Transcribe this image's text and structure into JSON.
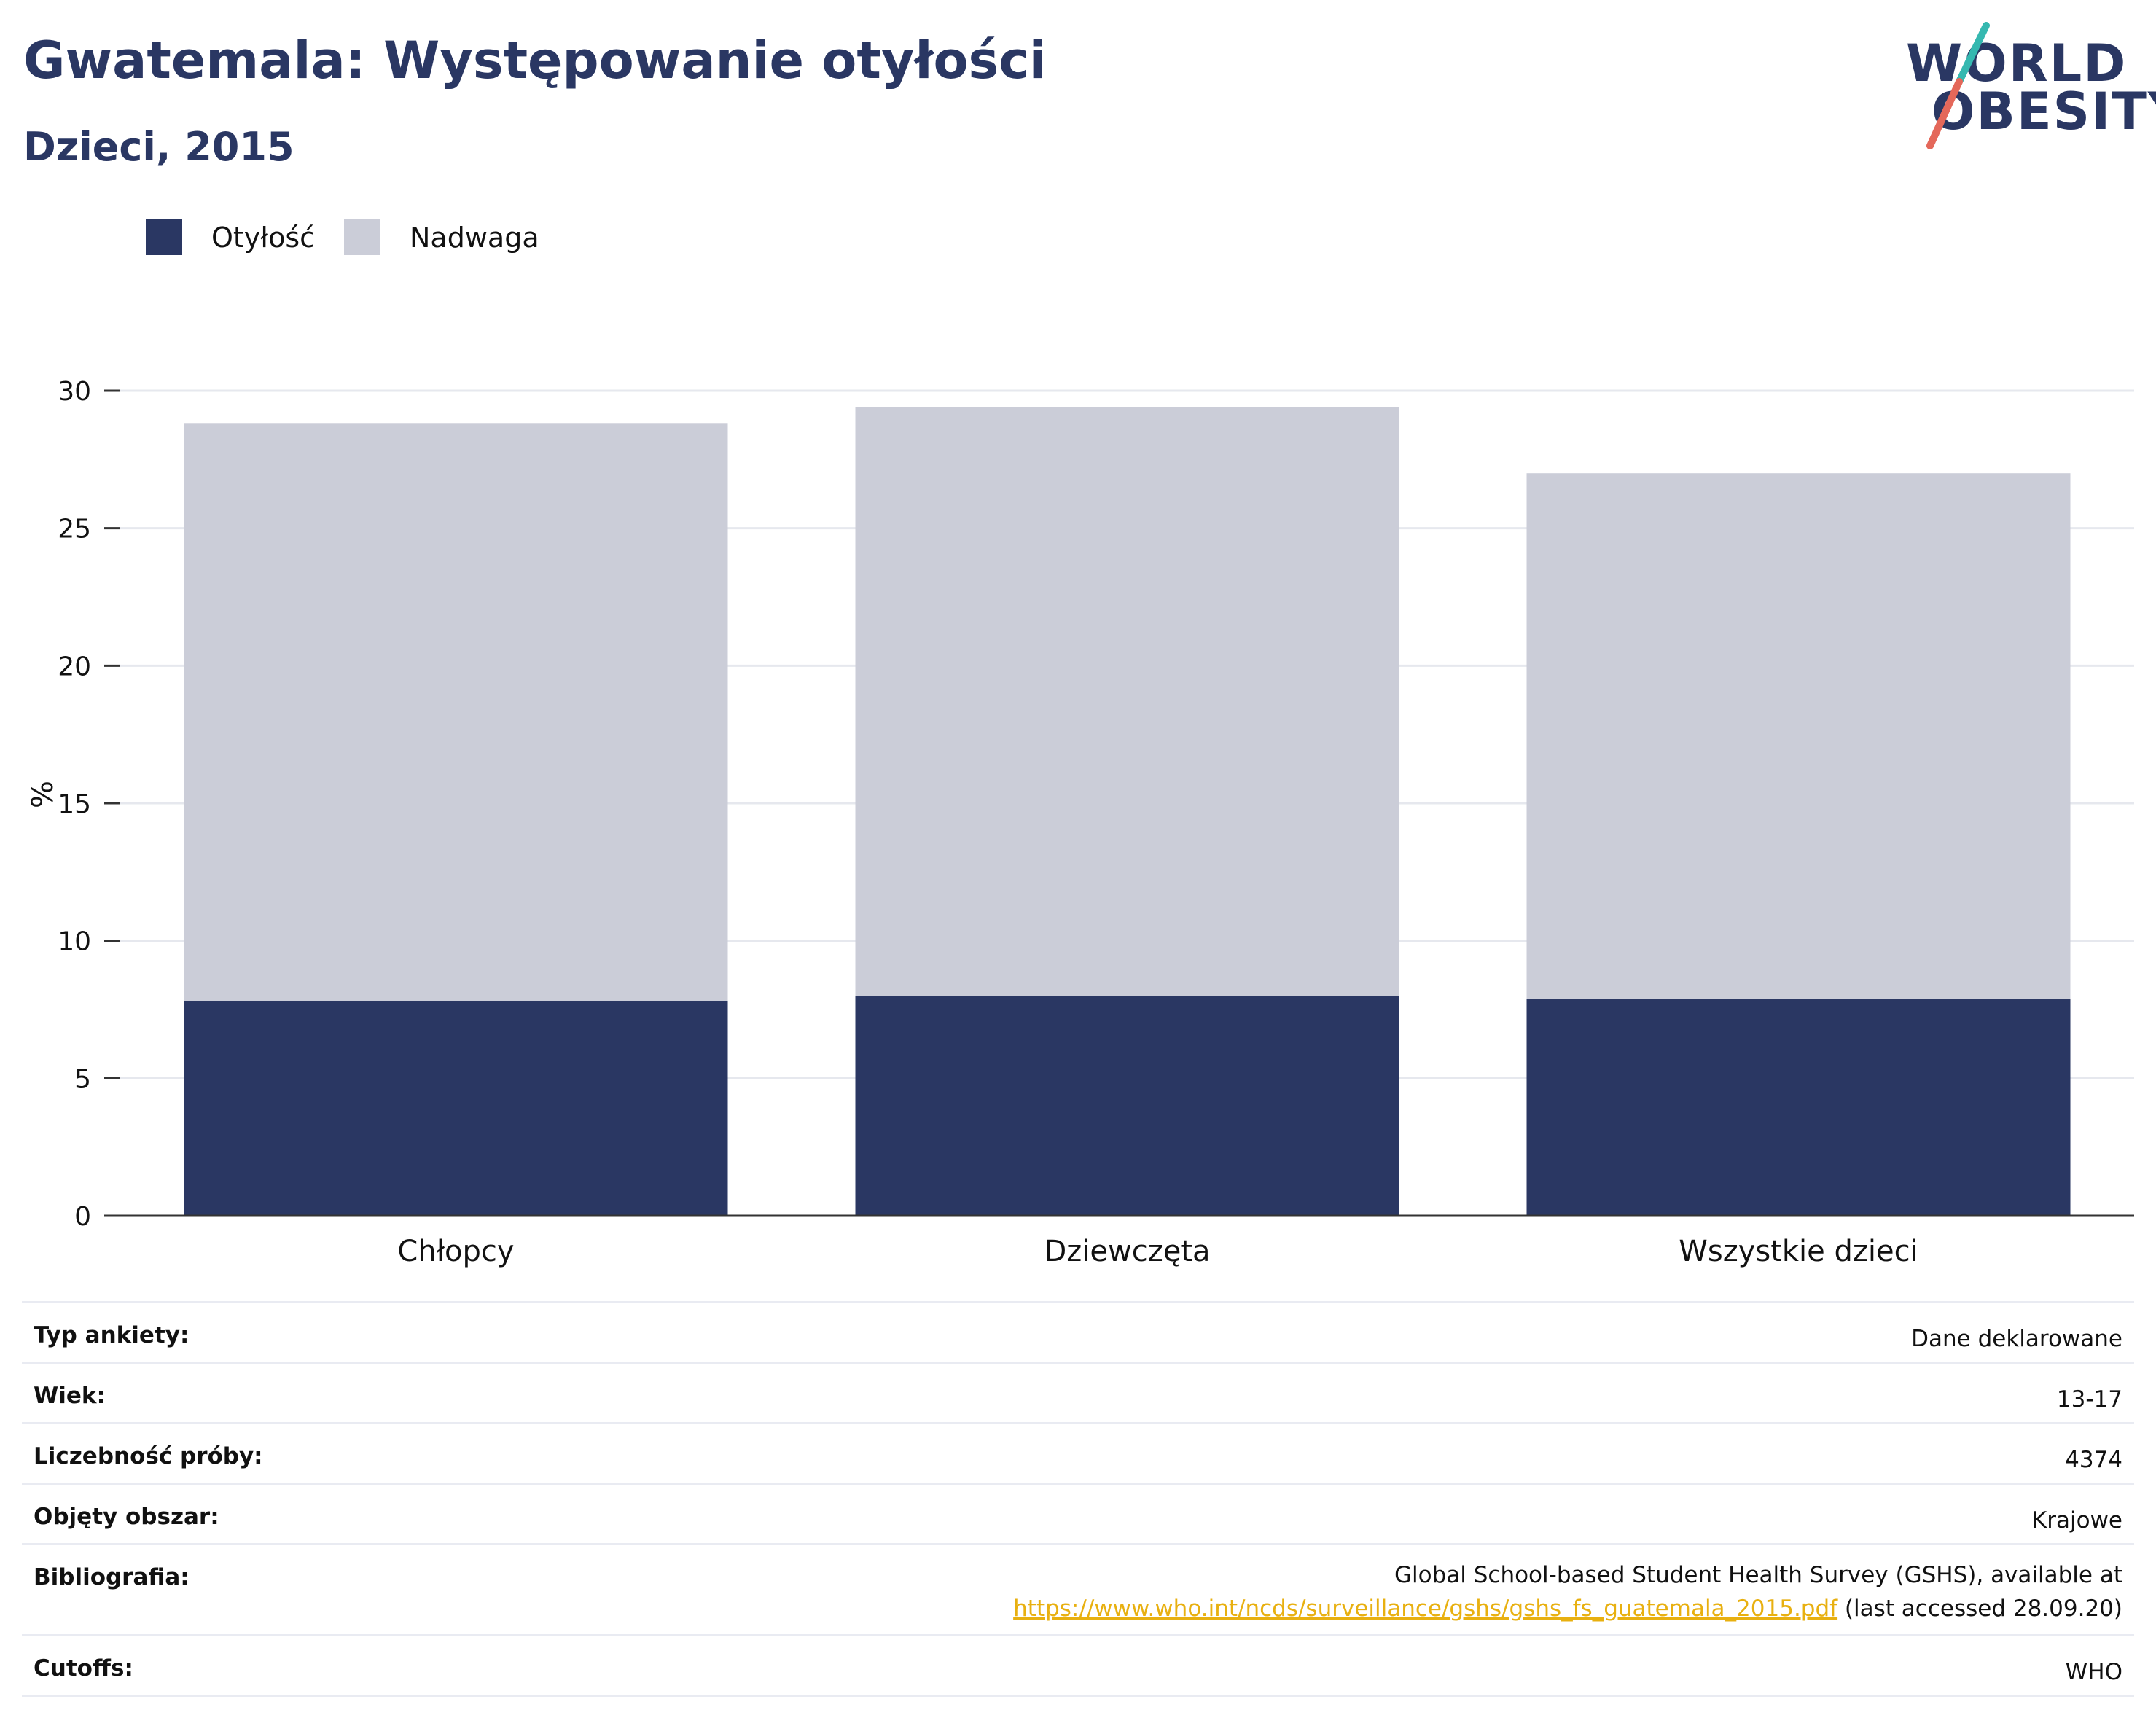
{
  "header": {
    "title": "Gwatemala: Występowanie otyłości",
    "subtitle": "Dzieci, 2015"
  },
  "logo": {
    "line1": "WORLD",
    "line2": "OBESITY"
  },
  "colors": {
    "obesity": "#2a3763",
    "overweight": "#cbcdd8",
    "accent_teal": "#35b8b0",
    "accent_red": "#e4685a",
    "link": "#e8b010"
  },
  "chart_data": {
    "type": "bar",
    "stacked": true,
    "categories": [
      "Chłopcy",
      "Dziewczęta",
      "Wszystkie dzieci"
    ],
    "series": [
      {
        "name": "Otyłość",
        "values": [
          7.8,
          8.0,
          7.9
        ]
      },
      {
        "name": "Nadwaga",
        "values": [
          21.0,
          21.4,
          19.1
        ]
      }
    ],
    "ylabel": "%",
    "ylim": [
      0,
      30
    ],
    "yticks": [
      0,
      5,
      10,
      15,
      20,
      25,
      30
    ],
    "grid": true,
    "legend_position": "top-left"
  },
  "info": {
    "rows": [
      {
        "key": "Typ ankiety:",
        "value": "Dane deklarowane"
      },
      {
        "key": "Wiek:",
        "value": "13-17"
      },
      {
        "key": "Liczebność próby:",
        "value": "4374"
      },
      {
        "key": "Objęty obszar:",
        "value": "Krajowe"
      }
    ],
    "bibliography": {
      "key": "Bibliografia:",
      "line1": "Global School-based Student Health Survey (GSHS), available at",
      "link": "https://www.who.int/ncds/surveillance/gshs/gshs_fs_guatemala_2015.pdf",
      "suffix": " (last accessed 28.09.20)"
    },
    "cutoffs": {
      "key": "Cutoffs:",
      "value": "WHO"
    }
  }
}
